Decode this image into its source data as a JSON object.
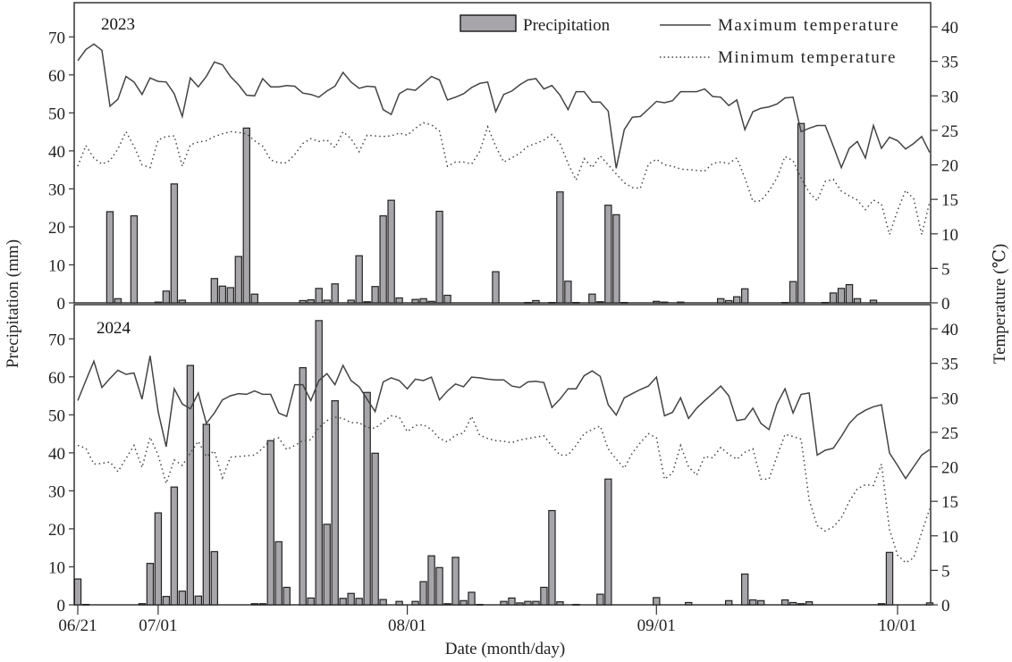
{
  "chart_data": [
    {
      "type": "bar+line",
      "panel_label": "2023",
      "legend": {
        "precip": "Precipitation",
        "tmax": "Maximum temperature",
        "tmin": "Minimum temperature",
        "placement": "top-right"
      },
      "colors": {
        "bar_fill": "#a7a5aa",
        "bar_stroke": "#222222",
        "line": "#444444"
      },
      "precipitation_mm": [
        0,
        0,
        0,
        0,
        24,
        1.1,
        0,
        22.9,
        0,
        0,
        0.2,
        3.1,
        31.3,
        0.7,
        0,
        0,
        0,
        6.4,
        4.4,
        4.0,
        12.2,
        46,
        2.3,
        0,
        0,
        0,
        0,
        0,
        0.6,
        0.8,
        3.8,
        0.7,
        5.0,
        0,
        0.7,
        12.4,
        0.3,
        4.3,
        22.9,
        27,
        1.3,
        0,
        0.9,
        1.1,
        0.4,
        24.1,
        2.0,
        0,
        0,
        0,
        0,
        0,
        8.2,
        0,
        0,
        0,
        0.1,
        0.6,
        0,
        0.1,
        29.2,
        5.7,
        0.1,
        0,
        2.3,
        0.3,
        25.7,
        23.2,
        0.1,
        0,
        0,
        0,
        0.4,
        0.2,
        0,
        0.2,
        0,
        0,
        0,
        0,
        1.1,
        0.6,
        1.6,
        3.7,
        0,
        0,
        0,
        0,
        0.1,
        5.6,
        47.2,
        0,
        0,
        0.1,
        2.6,
        3.8,
        4.8,
        1.1,
        0,
        0.7,
        0,
        0,
        0,
        0,
        0,
        0,
        0
      ],
      "max_temperature_c": [
        35.1,
        36.7,
        37.5,
        36.6,
        28.5,
        29.5,
        32.8,
        32.0,
        30.2,
        32.6,
        32.1,
        32.0,
        30.3,
        27.0,
        32.6,
        31.3,
        32.8,
        34.9,
        34.5,
        32.8,
        31.6,
        30.1,
        30.0,
        32.5,
        31.3,
        31.3,
        31.5,
        31.4,
        30.4,
        30.2,
        29.8,
        30.7,
        31.4,
        33.4,
        32.0,
        31.1,
        31.4,
        31.3,
        28.0,
        27.3,
        30.3,
        31.0,
        30.8,
        31.8,
        32.8,
        32.3,
        29.4,
        29.8,
        30.3,
        31.2,
        31.8,
        32.0,
        27.7,
        30.2,
        30.7,
        31.6,
        32.3,
        32.5,
        31.0,
        31.5,
        30.1,
        28.0,
        30.6,
        30.6,
        29.1,
        29.1,
        27.8,
        19.5,
        25.1,
        26.9,
        27.0,
        28.1,
        29.2,
        29.0,
        29.3,
        30.6,
        30.6,
        30.6,
        31.0,
        29.9,
        29.8,
        28.6,
        29.4,
        25.1,
        27.7,
        28.2,
        28.4,
        28.8,
        29.7,
        29.8,
        24.8,
        25.3,
        25.7,
        25.7,
        22.7,
        19.6,
        22.4,
        23.4,
        21.0,
        25.7,
        22.4,
        24.0,
        23.5,
        22.3,
        23.1,
        24.1,
        21.8
      ],
      "min_temperature_c": [
        19.8,
        22.8,
        21.0,
        20.1,
        20.6,
        22.3,
        24.8,
        22.7,
        20.0,
        19.6,
        23.6,
        24.1,
        24.2,
        19.8,
        22.9,
        23.3,
        23.5,
        24.1,
        24.5,
        24.8,
        24.7,
        24.5,
        23.5,
        22.7,
        20.7,
        20.3,
        20.3,
        21.5,
        23.1,
        23.8,
        23.4,
        23.6,
        22.5,
        24.8,
        23.8,
        21.9,
        24.3,
        24.2,
        24.1,
        24.2,
        24.6,
        24.3,
        25.3,
        26.1,
        25.8,
        24.9,
        19.8,
        20.4,
        20.4,
        20.1,
        21.9,
        25.5,
        22.7,
        20.4,
        21.0,
        21.7,
        22.7,
        23.1,
        23.6,
        24.4,
        23.1,
        20.2,
        17.8,
        20.9,
        19.6,
        21.3,
        20.0,
        18.7,
        17.4,
        16.7,
        16.6,
        20.1,
        20.8,
        20.0,
        19.8,
        19.4,
        19.3,
        19.2,
        19.1,
        20.2,
        20.4,
        20.2,
        21.0,
        18.1,
        14.7,
        14.8,
        16.2,
        18.1,
        21.2,
        20.6,
        18.1,
        16.0,
        14.8,
        17.6,
        17.9,
        16.2,
        15.5,
        14.9,
        13.5,
        14.9,
        14.3,
        9.9,
        13.4,
        16.3,
        15.1,
        9.9,
        14.6
      ]
    },
    {
      "type": "bar+line",
      "panel_label": "2024",
      "precipitation_mm": [
        6.8,
        0.1,
        0,
        0,
        0,
        0,
        0,
        0,
        0.3,
        10.9,
        24.2,
        2.2,
        31.0,
        3.6,
        63.0,
        2.3,
        47.5,
        14.0,
        0,
        0,
        0,
        0,
        0.3,
        0.3,
        43.2,
        16.6,
        4.6,
        0,
        62.4,
        1.8,
        74.8,
        21.2,
        53.7,
        1.7,
        3.0,
        1.7,
        55.9,
        39.9,
        1.4,
        0,
        0.9,
        0,
        0.9,
        6.1,
        12.9,
        9.8,
        0.3,
        12.5,
        1.1,
        3.3,
        0.1,
        0,
        0,
        0.9,
        1.8,
        0.5,
        0.9,
        0.9,
        4.6,
        24.8,
        0.8,
        0,
        0.1,
        0,
        0,
        2.8,
        33.1,
        0,
        0,
        0,
        0,
        0,
        1.9,
        0,
        0,
        0,
        0.6,
        0,
        0,
        0,
        0,
        1.1,
        0,
        8.1,
        1.3,
        1.1,
        0,
        0,
        1.3,
        0.6,
        0.3,
        0.8,
        0,
        0,
        0,
        0,
        0,
        0,
        0,
        0,
        0.3,
        13.8,
        0,
        0,
        0,
        0,
        0.5
      ],
      "max_temperature_c": [
        29.6,
        32.5,
        35.3,
        31.5,
        32.8,
        34.0,
        33.4,
        33.6,
        29.8,
        36.1,
        28.0,
        22.9,
        31.3,
        29.1,
        28.4,
        30.7,
        26.3,
        27.8,
        29.7,
        30.3,
        30.6,
        30.5,
        31.0,
        30.5,
        30.5,
        27.8,
        27.3,
        31.9,
        31.9,
        29.6,
        32.5,
        33.5,
        31.9,
        34.7,
        32.5,
        31.6,
        29.8,
        28.0,
        32.3,
        32.9,
        32.5,
        31.3,
        32.7,
        32.5,
        33.0,
        29.7,
        31.0,
        32.0,
        31.6,
        33.0,
        32.9,
        32.7,
        32.6,
        32.6,
        31.7,
        31.5,
        32.3,
        32.4,
        32.2,
        28.6,
        29.8,
        31.3,
        31.3,
        33.2,
        33.9,
        33.1,
        29.0,
        27.5,
        30.0,
        30.6,
        31.2,
        31.7,
        33.0,
        27.4,
        27.9,
        30.0,
        27.0,
        28.5,
        29.6,
        30.6,
        31.7,
        30.3,
        26.7,
        26.9,
        28.5,
        26.3,
        25.4,
        29.1,
        31.3,
        27.8,
        30.5,
        30.7,
        21.7,
        22.4,
        22.7,
        24.4,
        26.3,
        27.5,
        28.2,
        28.7,
        29.0,
        22.0,
        20.2,
        18.3,
        20.0,
        21.7,
        22.5
      ],
      "min_temperature_c": [
        23.1,
        22.7,
        20.4,
        20.5,
        20.7,
        19.3,
        21.2,
        23.1,
        19.9,
        24.3,
        21.7,
        17.6,
        21.0,
        20.2,
        22.0,
        23.7,
        21.5,
        22.3,
        18.4,
        21.4,
        21.5,
        21.6,
        21.7,
        22.7,
        23.9,
        24.2,
        22.5,
        23.1,
        23.8,
        23.9,
        25.7,
        26.7,
        27.2,
        27.0,
        26.4,
        26.4,
        25.7,
        25.6,
        26.5,
        27.4,
        27.2,
        25.1,
        26.0,
        26.1,
        25.4,
        24.1,
        23.6,
        24.6,
        24.9,
        27.3,
        24.6,
        24.1,
        23.8,
        23.7,
        23.5,
        23.9,
        24.1,
        24.3,
        24.5,
        23.0,
        21.7,
        21.7,
        23.1,
        24.8,
        25.4,
        25.9,
        22.6,
        21.1,
        19.8,
        22.0,
        23.5,
        24.8,
        24.2,
        18.2,
        19.1,
        23.1,
        20.0,
        18.8,
        21.5,
        21.3,
        22.8,
        21.8,
        21.1,
        22.1,
        22.6,
        18.2,
        18.2,
        21.5,
        24.7,
        24.4,
        24.0,
        15.2,
        11.5,
        10.7,
        11.3,
        12.6,
        15.0,
        16.8,
        17.4,
        17.3,
        20.4,
        10.9,
        7.2,
        6.1,
        6.8,
        10.5,
        13.9
      ]
    }
  ],
  "axes": {
    "dates": [
      "06/21",
      "06/22",
      "06/23",
      "06/24",
      "06/25",
      "06/26",
      "06/27",
      "06/28",
      "06/29",
      "06/30",
      "07/01",
      "07/02",
      "07/03",
      "07/04",
      "07/05",
      "07/06",
      "07/07",
      "07/08",
      "07/09",
      "07/10",
      "07/11",
      "07/12",
      "07/13",
      "07/14",
      "07/15",
      "07/16",
      "07/17",
      "07/18",
      "07/19",
      "07/20",
      "07/21",
      "07/22",
      "07/23",
      "07/24",
      "07/25",
      "07/26",
      "07/27",
      "07/28",
      "07/29",
      "07/30",
      "07/31",
      "08/01",
      "08/02",
      "08/03",
      "08/04",
      "08/05",
      "08/06",
      "08/07",
      "08/08",
      "08/09",
      "08/10",
      "08/11",
      "08/12",
      "08/13",
      "08/14",
      "08/15",
      "08/16",
      "08/17",
      "08/18",
      "08/19",
      "08/20",
      "08/21",
      "08/22",
      "08/23",
      "08/24",
      "08/25",
      "08/26",
      "08/27",
      "08/28",
      "08/29",
      "08/30",
      "08/31",
      "09/01",
      "09/02",
      "09/03",
      "09/04",
      "09/05",
      "09/06",
      "09/07",
      "09/08",
      "09/09",
      "09/10",
      "09/11",
      "09/12",
      "09/13",
      "09/14",
      "09/15",
      "09/16",
      "09/17",
      "09/18",
      "09/19",
      "09/20",
      "09/21",
      "09/22",
      "09/23",
      "09/24",
      "09/25",
      "09/26",
      "09/27",
      "09/28",
      "09/29",
      "09/30",
      "10/01",
      "10/02",
      "10/03",
      "10/04",
      "10/05"
    ],
    "x_ticks": [
      "06/21",
      "07/01",
      "08/01",
      "09/01",
      "10/01"
    ],
    "xlabel": "Date (month/day)",
    "ylabel_left": "Precipitation (mm)",
    "ylabel_right": "Temperature (℃)",
    "left_ticks": [
      "0",
      "10",
      "20",
      "30",
      "40",
      "50",
      "60",
      "70"
    ],
    "right_ticks": [
      "0",
      "5",
      "10",
      "15",
      "20",
      "25",
      "30",
      "35",
      "40"
    ],
    "ylim_left": [
      0,
      79
    ],
    "ylim_right": [
      0,
      43.5
    ],
    "grid": false
  }
}
